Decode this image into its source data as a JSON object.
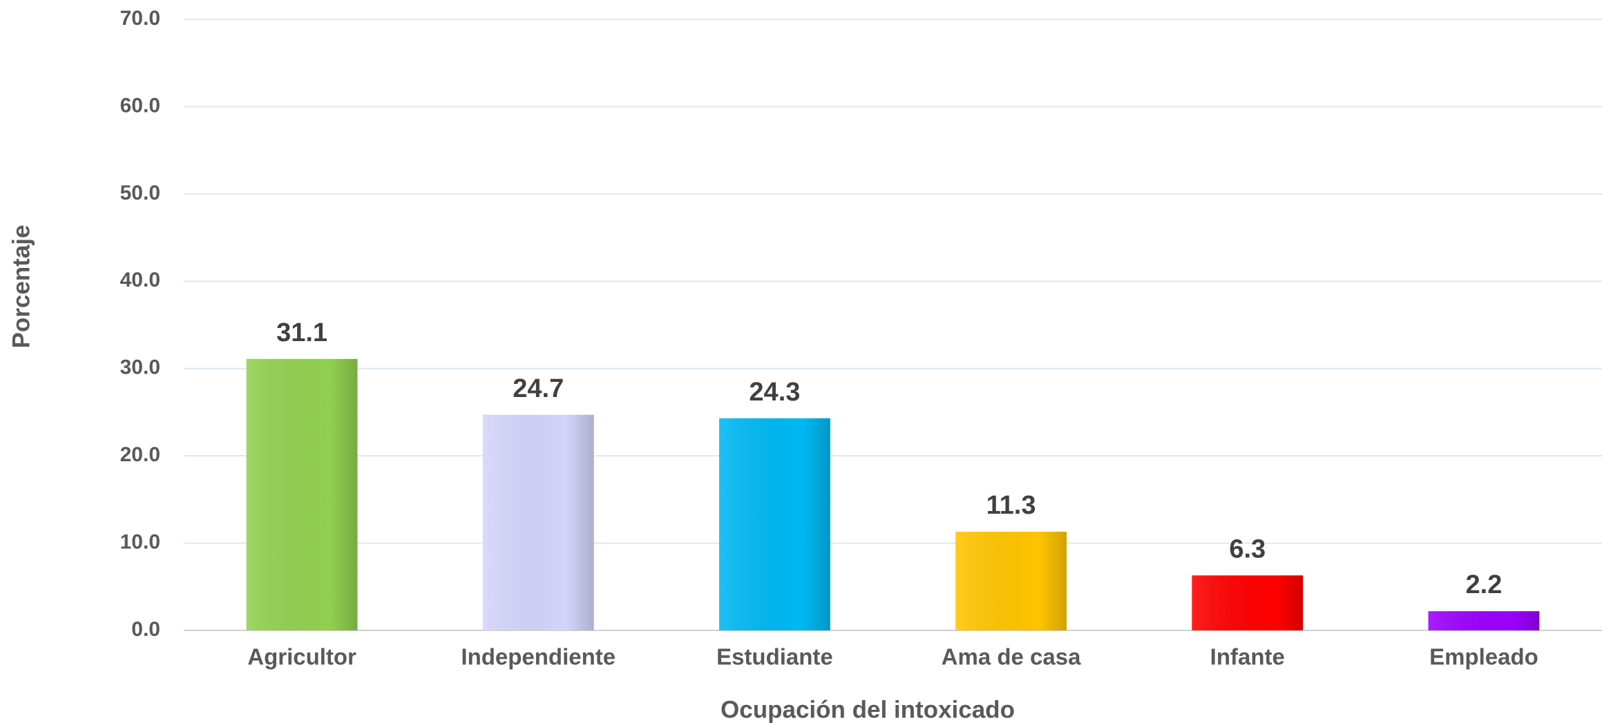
{
  "chart_data": {
    "type": "bar",
    "x_label": "Ocupación del intoxicado",
    "y_label": "Porcentaje",
    "categories": [
      "Agricultor",
      "Independiente",
      "Estudiante",
      "Ama de casa",
      "Infante",
      "Empleado"
    ],
    "values": [
      31.1,
      24.7,
      24.3,
      11.3,
      6.3,
      2.2
    ],
    "colors": [
      "#92d050",
      "#d4d4fb",
      "#00b8f2",
      "#ffc400",
      "#ff0000",
      "#9b00ff"
    ],
    "ylim": [
      0,
      70
    ],
    "yticks": [
      {
        "value": 0,
        "label": "0.0"
      },
      {
        "value": 10,
        "label": "10.0"
      },
      {
        "value": 20,
        "label": "20.0"
      },
      {
        "value": 30,
        "label": "30.0"
      },
      {
        "value": 40,
        "label": "40.0"
      },
      {
        "value": 50,
        "label": "50.0"
      },
      {
        "value": 60,
        "label": "60.0"
      },
      {
        "value": 70,
        "label": "70.0"
      }
    ],
    "grid": true
  }
}
